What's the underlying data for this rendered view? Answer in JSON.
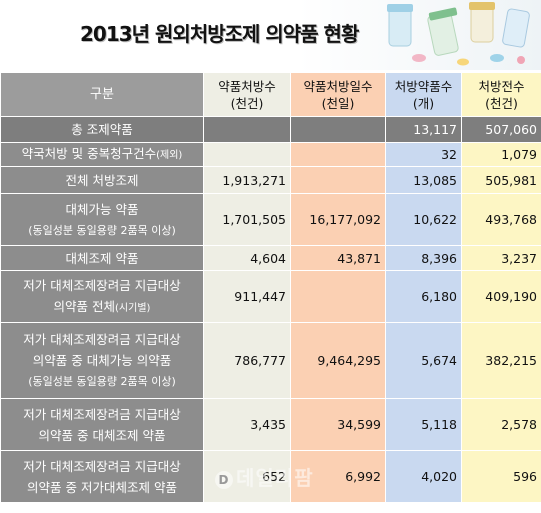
{
  "title": "2013년 원외처방조제 의약품 현황",
  "watermark": "데일리팜",
  "header": {
    "label": "구분",
    "columns": [
      {
        "line1": "약품처방수",
        "line2": "(천건)"
      },
      {
        "line1": "약품처방일수",
        "line2": "(천일)"
      },
      {
        "line1": "처방약품수",
        "line2": "(개)"
      },
      {
        "line1": "처방전수",
        "line2": "(천건)"
      }
    ]
  },
  "rows": [
    {
      "lines": [
        "총 조제약품"
      ],
      "values": [
        "",
        "",
        "13,117",
        "507,060"
      ]
    },
    {
      "lines": [
        "약국처방 및 중복청구건수"
      ],
      "suffix": "(제외)",
      "values": [
        "",
        "",
        "32",
        "1,079"
      ]
    },
    {
      "lines": [
        "전체 처방조제"
      ],
      "values": [
        "1,913,271",
        "",
        "13,085",
        "505,981"
      ]
    },
    {
      "lines": [
        "대체가능 약품",
        "(동일성분 동일용량 2품목 이상)"
      ],
      "values": [
        "1,701,505",
        "16,177,092",
        "10,622",
        "493,768"
      ]
    },
    {
      "lines": [
        "대체조제 약품"
      ],
      "values": [
        "4,604",
        "43,871",
        "8,396",
        "3,237"
      ]
    },
    {
      "lines": [
        "저가 대체조제장려금 지급대상",
        "의약품 전체"
      ],
      "suffix": "(시기별)",
      "values": [
        "911,447",
        "",
        "6,180",
        "409,190"
      ]
    },
    {
      "lines": [
        "저가 대체조제장려금 지급대상",
        "의약품 중 대체가능 의약품",
        "(동일성분 동일용량 2품목 이상)"
      ],
      "values": [
        "786,777",
        "9,464,295",
        "5,674",
        "382,215"
      ]
    },
    {
      "lines": [
        "저가 대체조제장려금 지급대상",
        "의약품 중 대체조제 약품"
      ],
      "values": [
        "3,435",
        "34,599",
        "5,118",
        "2,578"
      ]
    },
    {
      "lines": [
        "저가 대체조제장려금 지급대상",
        "의약품 중 저가대체조제 약품"
      ],
      "values": [
        "652",
        "6,992",
        "4,020",
        "596"
      ]
    }
  ]
}
